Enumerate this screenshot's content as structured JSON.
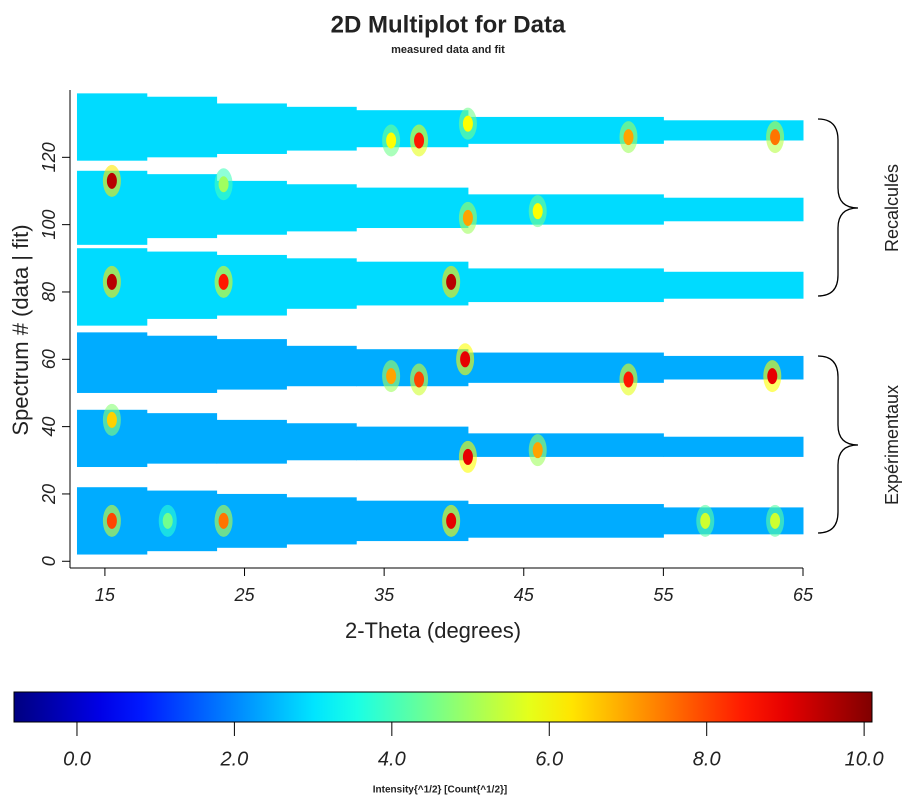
{
  "chart_data": {
    "type": "heatmap",
    "title": "2D Multiplot for Data",
    "subtitle": "measured data and fit",
    "x_label": "2-Theta (degrees)",
    "y_label": "Spectrum # (data | fit)",
    "xlim": [
      12.5,
      65
    ],
    "xticks": [
      15,
      25,
      35,
      45,
      55,
      65
    ],
    "ylim": [
      -2,
      140
    ],
    "yticks": [
      0,
      20,
      40,
      60,
      80,
      100,
      120
    ],
    "strips": [
      {
        "edges": [
          13,
          18,
          23,
          28,
          33,
          41,
          55,
          65
        ],
        "lower": [
          2,
          3,
          4,
          5,
          6,
          7,
          8
        ],
        "upper": [
          22,
          21,
          20,
          19,
          18,
          17,
          16
        ],
        "intensity": 2.4
      },
      {
        "edges": [
          13,
          18,
          23,
          28,
          33,
          41,
          55,
          65
        ],
        "lower": [
          28,
          29,
          29,
          30,
          30,
          31,
          31
        ],
        "upper": [
          45,
          44,
          42,
          41,
          40,
          38,
          37
        ],
        "intensity": 2.4
      },
      {
        "edges": [
          13,
          18,
          23,
          28,
          33,
          41,
          55,
          65
        ],
        "lower": [
          50,
          50,
          51,
          52,
          52,
          53,
          54
        ],
        "upper": [
          68,
          67,
          66,
          64,
          63,
          62,
          61
        ],
        "intensity": 2.4
      },
      {
        "edges": [
          13,
          18,
          23,
          28,
          33,
          41,
          55,
          65
        ],
        "lower": [
          70,
          72,
          73,
          75,
          76,
          77,
          78
        ],
        "upper": [
          93,
          92,
          91,
          90,
          89,
          87,
          86
        ],
        "intensity": 2.9
      },
      {
        "edges": [
          13,
          18,
          23,
          28,
          33,
          41,
          55,
          65
        ],
        "lower": [
          94,
          96,
          97,
          98,
          99,
          100,
          101
        ],
        "upper": [
          116,
          115,
          113,
          112,
          111,
          109,
          108
        ],
        "intensity": 2.9
      },
      {
        "edges": [
          13,
          18,
          23,
          28,
          33,
          41,
          55,
          65
        ],
        "lower": [
          119,
          120,
          121,
          122,
          123,
          124,
          125
        ],
        "upper": [
          139,
          138,
          136,
          135,
          134,
          132,
          131
        ],
        "intensity": 2.9
      }
    ],
    "peaks": {
      "x": [
        15.5,
        23.5,
        15.5,
        23.5,
        39.8,
        37.5,
        35.5,
        41,
        41,
        46,
        52.5,
        63,
        35.5,
        37.5,
        40.8,
        52.5,
        62.8,
        15.5,
        41,
        46,
        15.5,
        23.5,
        39.8,
        19.5,
        58,
        63
      ],
      "y": [
        113,
        112,
        83,
        83,
        83,
        125,
        125,
        130,
        102,
        104,
        126,
        126,
        55,
        54,
        60,
        54,
        55,
        42,
        31,
        33,
        12,
        12,
        12,
        12,
        12,
        12
      ],
      "intensity": [
        9.5,
        5,
        9.5,
        8.5,
        9.5,
        8.5,
        6,
        6,
        7,
        6,
        7,
        7.5,
        7,
        8,
        9,
        8.5,
        9,
        6.5,
        9,
        7,
        8,
        7.5,
        9,
        4.5,
        5.5,
        5.5
      ]
    },
    "colorbar": {
      "label": "Intensity{^1/2} [Count{^1/2}]",
      "clim": [
        -0.8,
        10.1
      ],
      "ticks": [
        {
          "value": 0,
          "label": "0.0"
        },
        {
          "value": 2,
          "label": "2.0"
        },
        {
          "value": 4,
          "label": "4.0"
        },
        {
          "value": 6,
          "label": "6.0"
        },
        {
          "value": 8,
          "label": "8.0"
        },
        {
          "value": 10,
          "label": "10.0"
        }
      ]
    },
    "annotations": [
      "Recalculés",
      "Expérimentaux"
    ]
  }
}
